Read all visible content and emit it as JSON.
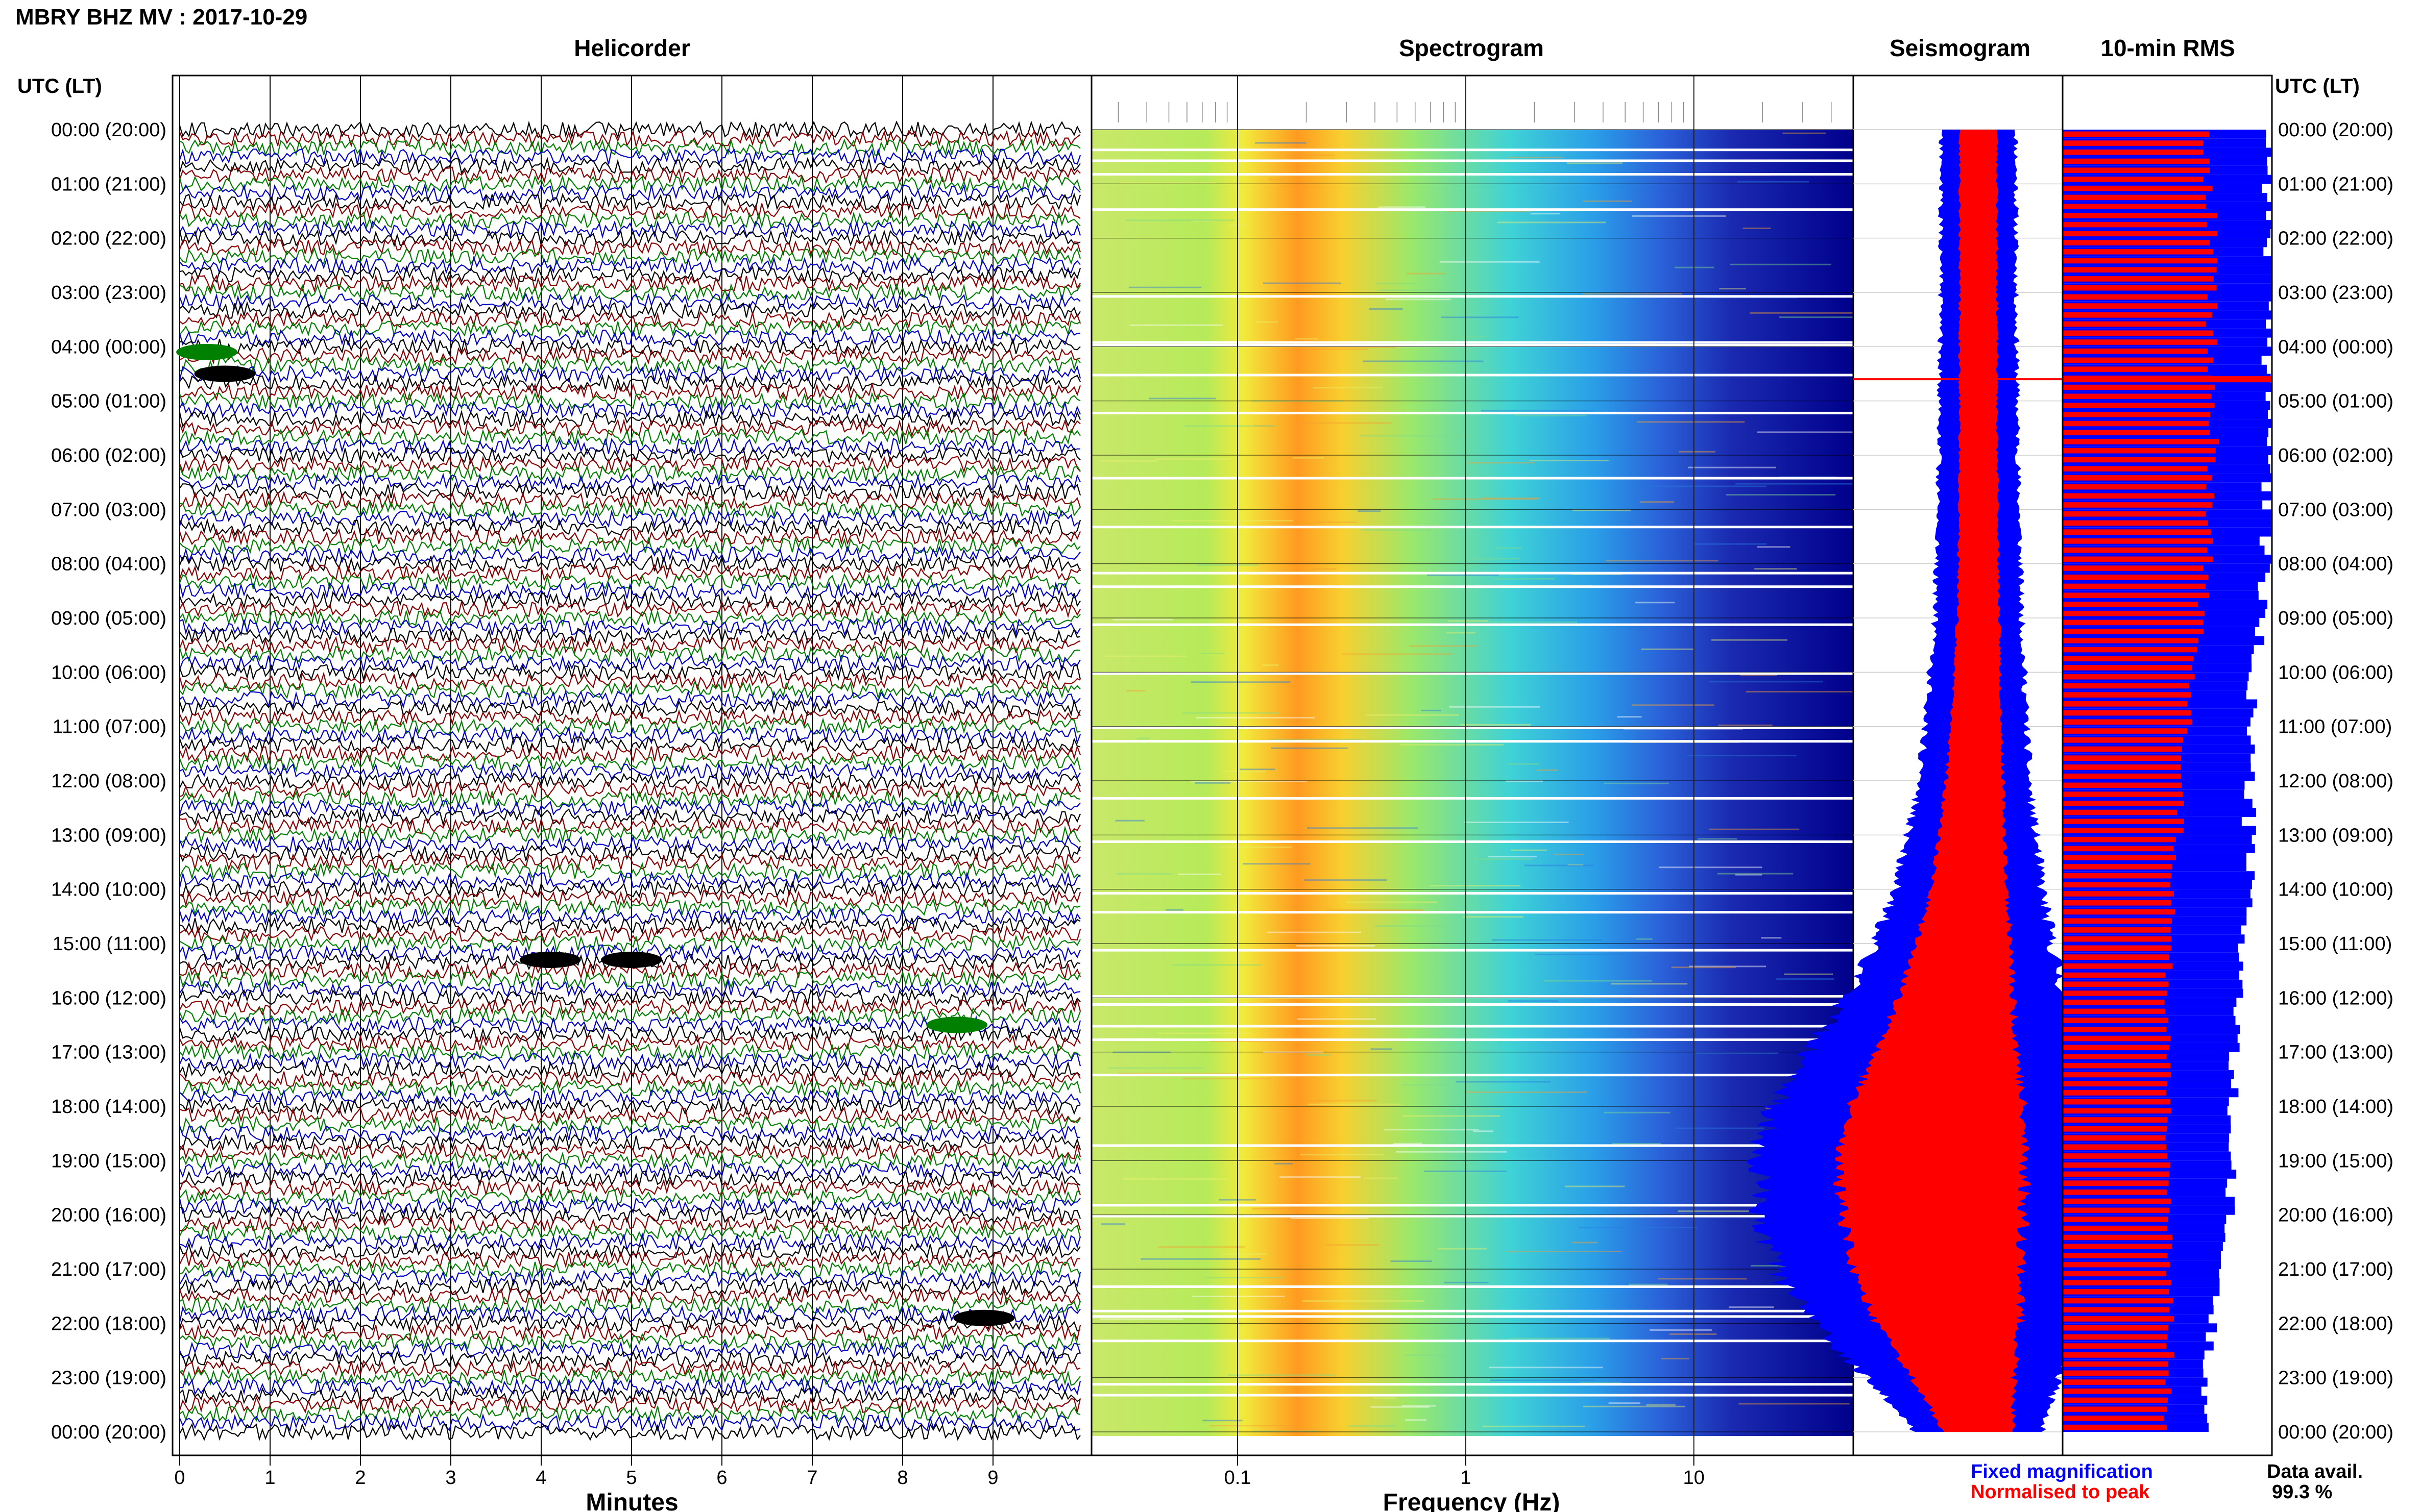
{
  "header": {
    "title": "MBRY BHZ MV : 2017-10-29",
    "utc_lt_label": "UTC (LT)"
  },
  "panels": {
    "helicorder": "Helicorder",
    "spectrogram": "Spectrogram",
    "seismogram": "Seismogram",
    "rms": "10-min RMS"
  },
  "axis_labels": {
    "minutes": "Minutes",
    "frequency": "Frequency (Hz)"
  },
  "legend": {
    "fixed": "Fixed magnification",
    "normalised": "Normalised to peak",
    "fixed_color": "#0000ff",
    "normalised_color": "#ff0000"
  },
  "data_availability": {
    "label": "Data avail.",
    "value": "99.3 %"
  },
  "colors": {
    "trace_cycle": [
      "#000000",
      "#8b0000",
      "#008000",
      "#0000c8"
    ],
    "spectrogram_blue": "#00008b",
    "spectrogram_hot": "#ff8c00",
    "rms_red": "#ff0000",
    "rms_blue": "#0000ff"
  },
  "chart_data": [
    {
      "type": "line",
      "name": "helicorder",
      "xlabel": "Minutes",
      "x_ticks": [
        0,
        1,
        2,
        3,
        4,
        5,
        6,
        7,
        8,
        9
      ],
      "xlim": [
        0,
        10
      ],
      "time_labels": [
        "00:00 (20:00)",
        "01:00 (21:00)",
        "02:00 (22:00)",
        "03:00 (23:00)",
        "04:00 (00:00)",
        "05:00 (01:00)",
        "06:00 (02:00)",
        "07:00 (03:00)",
        "08:00 (04:00)",
        "09:00 (05:00)",
        "10:00 (06:00)",
        "11:00 (07:00)",
        "12:00 (08:00)",
        "13:00 (09:00)",
        "14:00 (10:00)",
        "15:00 (11:00)",
        "16:00 (12:00)",
        "17:00 (13:00)",
        "18:00 (14:00)",
        "19:00 (15:00)",
        "20:00 (16:00)",
        "21:00 (17:00)",
        "22:00 (18:00)",
        "23:00 (19:00)",
        "00:00 (20:00)"
      ],
      "lines_per_hour": 6,
      "events": [
        {
          "hour": 4.1,
          "minute": 0.3,
          "color": "#008000"
        },
        {
          "hour": 4.5,
          "minute": 0.5,
          "color": "#000000"
        },
        {
          "hour": 15.3,
          "minute": 4.1,
          "color": "#000000"
        },
        {
          "hour": 15.3,
          "minute": 5.0,
          "color": "#000000"
        },
        {
          "hour": 16.5,
          "minute": 8.6,
          "color": "#008000"
        },
        {
          "hour": 21.9,
          "minute": 8.9,
          "color": "#000000"
        }
      ]
    },
    {
      "type": "heatmap",
      "name": "spectrogram",
      "xlabel": "Frequency (Hz)",
      "x_scale": "log",
      "xlim": [
        0.025,
        50
      ],
      "x_tick_labels": [
        "0.1",
        "1",
        "10"
      ],
      "x_tick_values": [
        0.1,
        1,
        10
      ],
      "dominant_frequency_hz": 0.25,
      "white_gaps_hours": [
        0.35,
        0.55,
        0.8,
        1.45,
        3.05,
        3.9,
        3.95,
        4.5,
        5.2,
        6.4,
        7.3,
        8.15,
        8.4,
        9.1,
        10.0,
        11.0,
        11.25,
        12.3,
        13.1,
        14.05,
        14.4,
        15.1,
        15.95,
        16.1,
        16.5,
        16.75,
        17.4,
        18.7,
        19.8,
        20.0,
        21.3,
        21.75,
        21.85,
        22.3,
        23.1,
        23.3
      ]
    },
    {
      "type": "area",
      "name": "seismogram",
      "hours": [
        0,
        3,
        6,
        9,
        12,
        14,
        15,
        16,
        17,
        18,
        19,
        20,
        21,
        22,
        23,
        24
      ],
      "fixed_half_width": [
        0.2,
        0.2,
        0.21,
        0.23,
        0.29,
        0.39,
        0.47,
        0.58,
        0.74,
        0.86,
        0.93,
        0.91,
        0.86,
        0.72,
        0.51,
        0.33
      ],
      "normalised_half_width": [
        0.1,
        0.1,
        0.1,
        0.11,
        0.15,
        0.2,
        0.25,
        0.3,
        0.38,
        0.45,
        0.5,
        0.48,
        0.45,
        0.38,
        0.27,
        0.18
      ],
      "center_drift": [
        0.0,
        0.0,
        0.0,
        0.0,
        -0.02,
        -0.05,
        -0.08,
        -0.12,
        -0.17,
        -0.22,
        -0.25,
        -0.24,
        -0.22,
        -0.16,
        -0.08,
        0.0
      ],
      "spike_hour": 4.6
    },
    {
      "type": "bar",
      "name": "rms_10min",
      "orientation": "horizontal",
      "hours": [
        0,
        2,
        4,
        6,
        8,
        10,
        12,
        14,
        16,
        17,
        18,
        20,
        22,
        24
      ],
      "normalised": [
        0.68,
        0.72,
        0.71,
        0.72,
        0.7,
        0.62,
        0.58,
        0.53,
        0.5,
        0.51,
        0.51,
        0.5,
        0.52,
        0.5
      ],
      "fixed": [
        1.0,
        1.0,
        1.0,
        1.0,
        0.98,
        0.92,
        0.9,
        0.9,
        0.85,
        0.82,
        0.82,
        0.8,
        0.72,
        0.68
      ],
      "spike_hour": 4.6
    }
  ]
}
